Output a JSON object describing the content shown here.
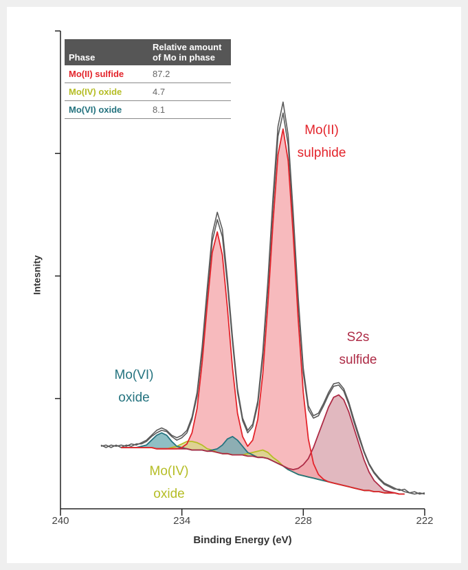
{
  "chart_data": {
    "type": "line",
    "xlabel": "Binding Energy (eV)",
    "ylabel": "Intesnity",
    "xlim": [
      240,
      222
    ],
    "xticks": [
      240,
      234,
      228,
      222
    ],
    "ylim": [
      0.1,
      4
    ],
    "yticks": [
      1,
      2,
      3,
      4
    ],
    "table_header": [
      "Phase",
      "Relative amount of Mo in phase"
    ],
    "annotations": [
      [
        "Mo(II)",
        "sulphide"
      ],
      [
        "S2s",
        "sulfide"
      ],
      [
        "Mo(VI)",
        "oxide"
      ],
      [
        "Mo(IV)",
        "oxide"
      ]
    ],
    "x": [
      238,
      237.75,
      237.5,
      237.25,
      237,
      236.75,
      236.5,
      236.25,
      236,
      235.75,
      235.5,
      235.25,
      235,
      234.75,
      234.5,
      234.25,
      234,
      233.75,
      233.5,
      233.25,
      233,
      232.75,
      232.5,
      232.25,
      232,
      231.75,
      231.5,
      231.25,
      231,
      230.75,
      230.5,
      230.25,
      230,
      229.75,
      229.5,
      229.25,
      229,
      228.75,
      228.5,
      228.25,
      228,
      227.75,
      227.5,
      227.25,
      227,
      226.75,
      226.5,
      226.25,
      226,
      225.75,
      225.5,
      225.25,
      225,
      224.75,
      224.5,
      224.25,
      224,
      223.75,
      223.5,
      223.25,
      223,
      222.75,
      222.5,
      222.25,
      222
    ],
    "series": [
      {
        "color": "#5a5a5a",
        "values": [
          0.62,
          0.6,
          0.62,
          0.61,
          0.62,
          0.61,
          0.63,
          0.62,
          0.64,
          0.66,
          0.7,
          0.74,
          0.76,
          0.74,
          0.7,
          0.68,
          0.7,
          0.74,
          0.85,
          1.05,
          1.42,
          1.9,
          2.34,
          2.52,
          2.38,
          1.98,
          1.5,
          1.08,
          0.84,
          0.74,
          0.79,
          0.98,
          1.38,
          1.96,
          2.64,
          3.22,
          3.42,
          3.15,
          2.52,
          1.82,
          1.25,
          0.94,
          0.86,
          0.88,
          0.96,
          1.05,
          1.12,
          1.13,
          1.08,
          0.97,
          0.83,
          0.7,
          0.57,
          0.47,
          0.4,
          0.35,
          0.31,
          0.29,
          0.27,
          0.25,
          0.26,
          0.23,
          0.24,
          0.22,
          0.23
        ]
      },
      {
        "color": "#5a5a5a",
        "values": [
          0.61,
          0.62,
          0.6,
          0.62,
          0.6,
          0.62,
          0.61,
          0.63,
          0.63,
          0.65,
          0.69,
          0.72,
          0.74,
          0.73,
          0.69,
          0.66,
          0.68,
          0.72,
          0.83,
          1.02,
          1.38,
          1.85,
          2.28,
          2.46,
          2.32,
          1.93,
          1.46,
          1.05,
          0.82,
          0.72,
          0.77,
          0.95,
          1.34,
          1.91,
          2.57,
          3.14,
          3.33,
          3.07,
          2.46,
          1.77,
          1.21,
          0.91,
          0.84,
          0.86,
          0.94,
          1.03,
          1.1,
          1.11,
          1.06,
          0.95,
          0.81,
          0.68,
          0.56,
          0.46,
          0.39,
          0.34,
          0.3,
          0.28,
          0.26,
          0.26,
          0.24,
          0.23,
          0.22,
          0.23,
          0.22
        ]
      },
      {
        "color": "#8a7a55",
        "values": [
          null,
          null,
          null,
          null,
          0.6,
          0.6,
          0.6,
          0.6,
          0.6,
          0.6,
          0.6,
          0.59,
          0.59,
          0.59,
          0.59,
          0.59,
          0.59,
          0.59,
          0.58,
          0.58,
          0.58,
          0.57,
          0.57,
          0.56,
          0.55,
          0.55,
          0.54,
          0.54,
          0.54,
          0.53,
          0.53,
          0.52,
          0.52,
          0.51,
          0.49,
          0.47,
          0.45,
          0.42,
          0.4,
          0.38,
          0.37,
          0.36,
          0.35,
          0.34,
          0.33,
          0.32,
          0.31,
          0.3,
          0.29,
          0.28,
          0.27,
          0.26,
          0.25,
          0.25,
          0.24,
          0.24,
          0.23,
          0.23,
          0.23,
          0.22,
          0.22,
          null,
          null,
          null,
          null
        ]
      },
      {
        "name": "Mo(II) sulfide",
        "amount": 87.2,
        "color": "#e3242b",
        "fill": "#f4a3a7",
        "values": [
          null,
          null,
          null,
          null,
          0.6,
          0.6,
          0.6,
          0.6,
          0.6,
          0.6,
          0.6,
          0.59,
          0.59,
          0.59,
          0.59,
          0.59,
          0.6,
          0.63,
          0.72,
          0.92,
          1.29,
          1.76,
          2.19,
          2.36,
          2.17,
          1.74,
          1.25,
          0.88,
          0.69,
          0.61,
          0.66,
          0.83,
          1.2,
          1.77,
          2.43,
          2.99,
          3.2,
          2.94,
          2.34,
          1.64,
          1.05,
          0.67,
          0.47,
          0.38,
          0.34,
          0.32,
          0.31,
          0.3,
          0.29,
          0.28,
          0.27,
          0.26,
          0.25,
          0.25,
          0.24,
          0.24,
          0.23,
          0.23,
          0.23,
          0.22,
          0.22,
          null,
          null,
          null,
          null
        ]
      },
      {
        "name": "Mo(IV) oxide",
        "amount": 4.7,
        "color": "#b5bd25",
        "fill": "#d6da86",
        "values": [
          null,
          null,
          null,
          null,
          0.6,
          0.6,
          0.6,
          0.6,
          0.6,
          0.6,
          0.6,
          0.59,
          0.59,
          0.59,
          0.6,
          0.61,
          0.63,
          0.65,
          0.65,
          0.64,
          0.62,
          0.59,
          0.58,
          0.56,
          0.55,
          0.55,
          0.54,
          0.54,
          0.54,
          0.55,
          0.56,
          0.57,
          0.58,
          0.56,
          0.52,
          0.49,
          0.45,
          0.42,
          0.4,
          0.38,
          0.37,
          0.36,
          0.35,
          0.34,
          0.33,
          0.32,
          0.31,
          0.3,
          0.29,
          0.28,
          0.27,
          0.26,
          0.25,
          0.25,
          0.24,
          0.24,
          0.23,
          0.23,
          0.23,
          0.22,
          0.22,
          null,
          null,
          null,
          null
        ]
      },
      {
        "name": "Mo(VI) oxide",
        "amount": 8.1,
        "color": "#24737f",
        "fill": "#6aa9b0",
        "values": [
          null,
          null,
          null,
          null,
          0.6,
          0.6,
          0.6,
          0.6,
          0.61,
          0.62,
          0.66,
          0.7,
          0.72,
          0.7,
          0.65,
          0.61,
          0.6,
          0.59,
          0.58,
          0.58,
          0.58,
          0.57,
          0.58,
          0.59,
          0.62,
          0.67,
          0.69,
          0.66,
          0.61,
          0.56,
          0.54,
          0.52,
          0.52,
          0.51,
          0.49,
          0.47,
          0.45,
          0.42,
          0.4,
          0.38,
          0.37,
          0.36,
          0.35,
          0.34,
          0.33,
          0.32,
          0.31,
          0.3,
          0.29,
          0.28,
          0.27,
          0.26,
          0.25,
          0.25,
          0.24,
          0.24,
          0.23,
          0.23,
          0.23,
          0.22,
          0.22,
          null,
          null,
          null,
          null
        ]
      },
      {
        "color": "#ad2a45",
        "fill": "#d7a0aa",
        "values": [
          null,
          null,
          null,
          null,
          0.6,
          0.6,
          0.6,
          0.6,
          0.6,
          0.6,
          0.6,
          0.59,
          0.59,
          0.59,
          0.59,
          0.59,
          0.59,
          0.59,
          0.58,
          0.58,
          0.58,
          0.57,
          0.57,
          0.56,
          0.55,
          0.55,
          0.54,
          0.54,
          0.54,
          0.53,
          0.53,
          0.52,
          0.52,
          0.51,
          0.49,
          0.47,
          0.45,
          0.43,
          0.42,
          0.43,
          0.46,
          0.51,
          0.6,
          0.71,
          0.82,
          0.93,
          1.01,
          1.03,
          0.99,
          0.89,
          0.76,
          0.63,
          0.5,
          0.4,
          0.33,
          0.29,
          0.25,
          0.24,
          0.23,
          0.22,
          0.22,
          null,
          null,
          null,
          null
        ]
      }
    ]
  }
}
